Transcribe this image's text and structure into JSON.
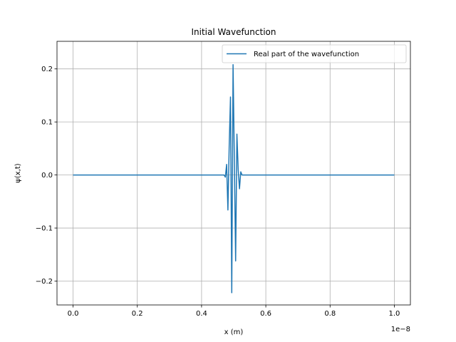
{
  "chart_data": {
    "type": "line",
    "title": "Initial Wavefunction",
    "xlabel": "x (m)",
    "ylabel": "ψ(x,t)",
    "x_offset_label": "1e−8",
    "x_scale": 1e-08,
    "xlim": [
      -0.05,
      1.05
    ],
    "ylim": [
      -0.245,
      0.252
    ],
    "x_ticks": [
      0.0,
      0.2,
      0.4,
      0.6,
      0.8,
      1.0
    ],
    "x_tick_labels": [
      "0.0",
      "0.2",
      "0.4",
      "0.6",
      "0.8",
      "1.0"
    ],
    "y_ticks": [
      -0.2,
      -0.1,
      0.0,
      0.1,
      0.2
    ],
    "y_tick_labels": [
      "−0.2",
      "−0.1",
      "0.0",
      "0.1",
      "0.2"
    ],
    "grid": true,
    "legend_position": "top-right",
    "series": [
      {
        "name": "Real part of the wavefunction",
        "color": "#1f77b4",
        "x": [
          0.0,
          0.3,
          0.45,
          0.47,
          0.474,
          0.478,
          0.482,
          0.486,
          0.49,
          0.494,
          0.498,
          0.502,
          0.506,
          0.51,
          0.514,
          0.518,
          0.522,
          0.526,
          0.53,
          0.55,
          0.7,
          1.0
        ],
        "y": [
          0.0,
          0.0,
          0.0,
          0.0,
          -0.004,
          0.02,
          -0.066,
          0.055,
          0.147,
          -0.222,
          0.208,
          0.03,
          -0.162,
          0.077,
          0.01,
          -0.026,
          0.006,
          0.0,
          0.0,
          0.0,
          0.0,
          0.0
        ]
      }
    ]
  }
}
